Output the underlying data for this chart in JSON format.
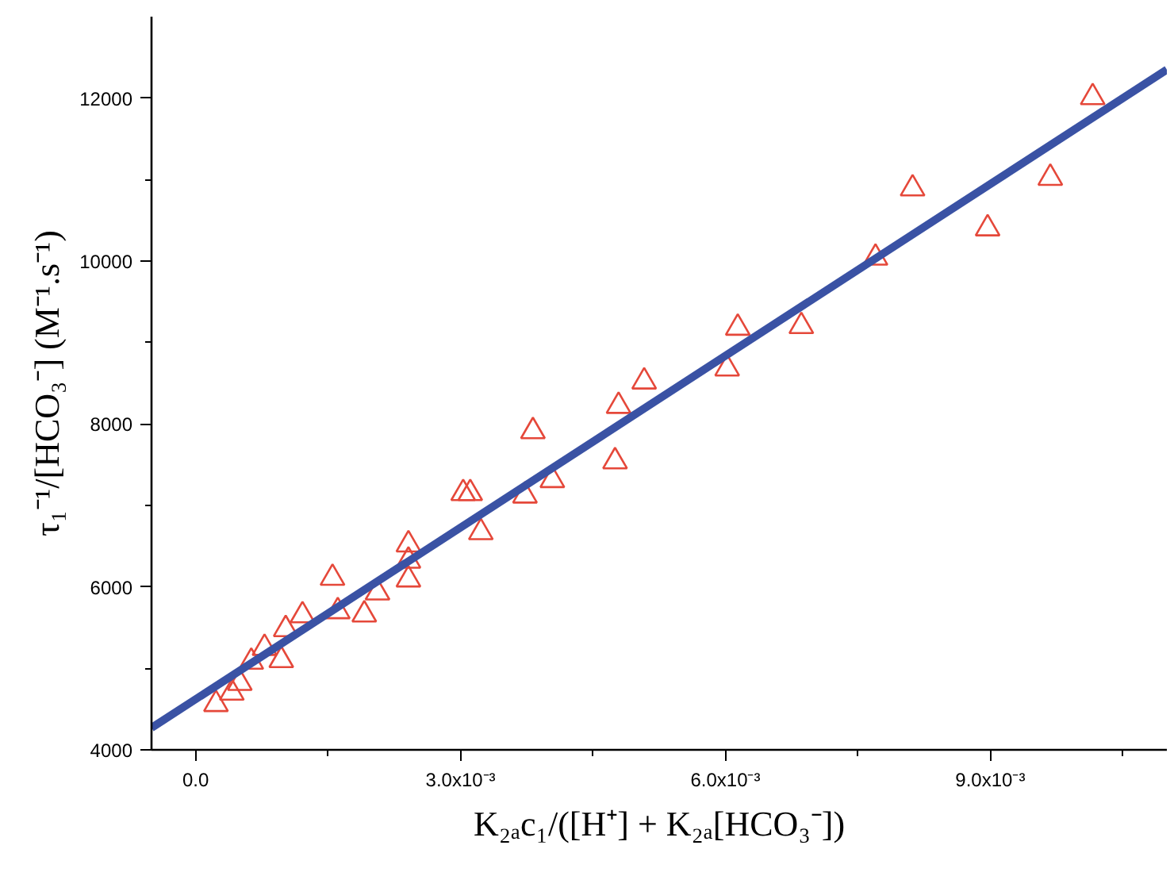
{
  "chart_data": {
    "type": "scatter",
    "xlabel": "K₂ₐc₁/([H⁺] + K₂ₐ[HCO₃⁻])",
    "ylabel": "τ₁⁻¹/[HCO₃⁻] (M⁻¹.s⁻¹)",
    "xlim": [
      -0.0005,
      0.011
    ],
    "ylim": [
      4000,
      13000
    ],
    "xticks": [
      {
        "value": 0,
        "label": "0.0"
      },
      {
        "value": 0.0015,
        "label": null
      },
      {
        "value": 0.003,
        "label": "3.0x10⁻³"
      },
      {
        "value": 0.0045,
        "label": null
      },
      {
        "value": 0.006,
        "label": "6.0x10⁻³"
      },
      {
        "value": 0.0075,
        "label": null
      },
      {
        "value": 0.009,
        "label": "9.0x10⁻³"
      },
      {
        "value": 0.0105,
        "label": null
      }
    ],
    "yticks": [
      4000,
      {
        "value": 5000,
        "label": null
      },
      6000,
      {
        "value": 7000,
        "label": null
      },
      8000,
      {
        "value": 9000,
        "label": null
      },
      10000,
      {
        "value": 11000,
        "label": null
      },
      12000
    ],
    "grid": false,
    "series": [
      {
        "marker": "triangle",
        "color": "#e5483a",
        "x": [
          0.00023,
          0.00041,
          0.0005,
          0.00063,
          0.00078,
          0.00097,
          0.00102,
          0.00121,
          0.00155,
          0.00161,
          0.00191,
          0.00206,
          0.00241,
          0.00241,
          0.00241,
          0.00303,
          0.00311,
          0.00323,
          0.00373,
          0.00382,
          0.00404,
          0.00475,
          0.00479,
          0.00508,
          0.00602,
          0.00614,
          0.00686,
          0.0077,
          0.00812,
          0.00897,
          0.00968,
          0.01016
        ],
        "values": [
          4560,
          4700,
          4820,
          5080,
          5250,
          5100,
          5480,
          5650,
          6110,
          5700,
          5660,
          5930,
          6090,
          6320,
          6520,
          7150,
          7150,
          6670,
          7120,
          7910,
          7310,
          7540,
          8220,
          8520,
          8680,
          9180,
          9200,
          10040,
          10890,
          10400,
          11020,
          12010
        ]
      },
      {
        "type": "line",
        "line_style": "solid",
        "color": "#3a52a4",
        "x": [
          -0.0005,
          0.011
        ],
        "values": [
          4270,
          12350
        ]
      }
    ]
  }
}
